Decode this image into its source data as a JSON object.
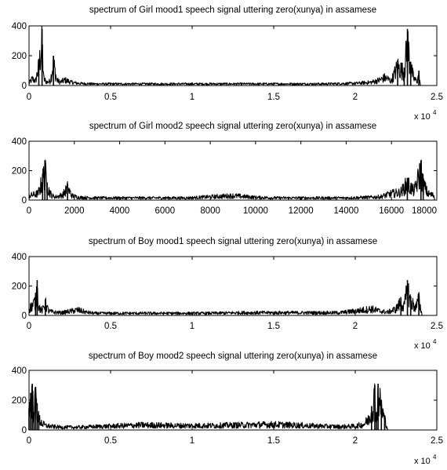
{
  "chart_data": [
    {
      "type": "line",
      "title": "spectrum of Girl mood1 speech signal uttering zero(xunya) in assamese",
      "xlabel": "",
      "ylabel": "",
      "xlim": [
        0,
        2.5
      ],
      "ylim": [
        0,
        400
      ],
      "x_multiplier": "x 10",
      "x_multiplier_exp": "4",
      "xticks": [
        "0",
        "0.5",
        "1",
        "1.5",
        "2",
        "2.5"
      ],
      "yticks": [
        "0",
        "200",
        "400"
      ],
      "grid": false,
      "series": [
        {
          "x": [
            0,
            0.02,
            0.04,
            0.06,
            0.08,
            0.09,
            0.11,
            0.13,
            0.15,
            0.17,
            0.19,
            0.22,
            0.26,
            0.3,
            0.4,
            0.6,
            0.8,
            1.0,
            1.2,
            1.4,
            1.6,
            1.8,
            2.0,
            2.1,
            2.15,
            2.18,
            2.2,
            2.22,
            2.26,
            2.3,
            2.32,
            2.34,
            2.36,
            2.38,
            2.39,
            2.4
          ],
          "y": [
            20,
            60,
            40,
            170,
            380,
            60,
            30,
            40,
            200,
            50,
            30,
            50,
            30,
            20,
            15,
            15,
            15,
            15,
            15,
            15,
            15,
            15,
            20,
            30,
            50,
            70,
            60,
            40,
            170,
            120,
            380,
            160,
            60,
            40,
            100,
            0
          ]
        }
      ]
    },
    {
      "type": "line",
      "title": "spectrum of Girl mood2 speech signal uttering zero(xunya) in assamese",
      "xlabel": "",
      "ylabel": "",
      "xlim": [
        0,
        18000
      ],
      "ylim": [
        0,
        400
      ],
      "xticks": [
        "0",
        "2000",
        "4000",
        "6000",
        "8000",
        "10000",
        "12000",
        "14000",
        "16000",
        "18000"
      ],
      "yticks": [
        "0",
        "200",
        "400"
      ],
      "grid": false,
      "series": [
        {
          "x": [
            0,
            200,
            400,
            600,
            700,
            800,
            1000,
            1200,
            1500,
            1700,
            1900,
            2200,
            3000,
            4000,
            5000,
            6000,
            7000,
            8000,
            9000,
            10000,
            11000,
            12000,
            13000,
            14000,
            15000,
            15500,
            16000,
            16400,
            16700,
            17000,
            17300,
            17400,
            17600,
            17900
          ],
          "y": [
            40,
            50,
            60,
            180,
            270,
            120,
            40,
            30,
            50,
            110,
            40,
            25,
            20,
            20,
            20,
            20,
            20,
            30,
            40,
            25,
            20,
            20,
            20,
            20,
            25,
            30,
            60,
            70,
            150,
            80,
            270,
            150,
            60,
            40
          ]
        }
      ]
    },
    {
      "type": "line",
      "title": "spectrum of Boy mood1 speech signal uttering zero(xunya) in assamese",
      "xlabel": "",
      "ylabel": "",
      "xlim": [
        0,
        2.5
      ],
      "ylim": [
        0,
        400
      ],
      "x_multiplier": "x 10",
      "x_multiplier_exp": "4",
      "xticks": [
        "0",
        "0.5",
        "1",
        "1.5",
        "2",
        "2.5"
      ],
      "yticks": [
        "0",
        "200",
        "400"
      ],
      "grid": false,
      "series": [
        {
          "x": [
            0,
            0.02,
            0.04,
            0.05,
            0.06,
            0.08,
            0.1,
            0.12,
            0.15,
            0.2,
            0.3,
            0.35,
            0.4,
            0.5,
            0.7,
            0.9,
            1.1,
            1.3,
            1.5,
            1.7,
            1.9,
            2.0,
            2.1,
            2.15,
            2.2,
            2.25,
            2.28,
            2.3,
            2.32,
            2.34,
            2.37,
            2.39,
            2.41
          ],
          "y": [
            60,
            90,
            130,
            240,
            80,
            40,
            110,
            40,
            30,
            25,
            50,
            30,
            20,
            20,
            20,
            20,
            20,
            25,
            25,
            25,
            25,
            40,
            60,
            40,
            30,
            60,
            120,
            80,
            240,
            130,
            70,
            140,
            0
          ]
        }
      ]
    },
    {
      "type": "line",
      "title": "spectrum of Boy mood2 speech signal uttering zero(xunya) in assamese",
      "xlabel": "",
      "ylabel": "",
      "xlim": [
        0,
        2.5
      ],
      "ylim": [
        0,
        400
      ],
      "x_multiplier": "x 10",
      "x_multiplier_exp": "4",
      "xticks": [
        "0",
        "0.5",
        "1",
        "1.5",
        "2",
        "2.5"
      ],
      "yticks": [
        "0",
        "200",
        "400"
      ],
      "grid": false,
      "series": [
        {
          "x": [
            0,
            0.01,
            0.02,
            0.03,
            0.04,
            0.05,
            0.06,
            0.08,
            0.1,
            0.15,
            0.2,
            0.3,
            0.5,
            0.7,
            0.9,
            1.1,
            1.3,
            1.5,
            1.7,
            1.9,
            2.0,
            2.05,
            2.08,
            2.1,
            2.12,
            2.13,
            2.14,
            2.16,
            2.18,
            2.2
          ],
          "y": [
            150,
            250,
            310,
            120,
            290,
            180,
            100,
            60,
            40,
            30,
            25,
            25,
            35,
            45,
            40,
            40,
            45,
            50,
            40,
            30,
            35,
            50,
            90,
            160,
            300,
            120,
            310,
            200,
            100,
            0
          ]
        }
      ]
    }
  ]
}
